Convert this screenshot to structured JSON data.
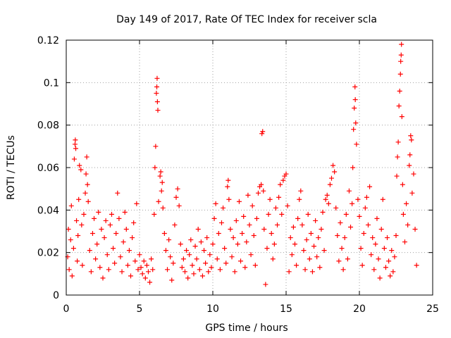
{
  "chart_data": {
    "type": "scatter",
    "title": "Day 149 of 2017, Rate Of TEC Index for receiver scla",
    "xlabel": "GPS time / hours",
    "ylabel": "ROTI / TECUs",
    "xlim": [
      0,
      25
    ],
    "ylim": [
      0,
      0.12
    ],
    "x_ticks": [
      "0",
      "5",
      "10",
      "15",
      "20",
      "25"
    ],
    "y_ticks": [
      "0",
      "0.02",
      "0.04",
      "0.06",
      "0.08",
      "0.1",
      "0.12"
    ],
    "x_tick_values": [
      0,
      5,
      10,
      15,
      20,
      25
    ],
    "y_tick_values": [
      0,
      0.02,
      0.04,
      0.06,
      0.08,
      0.1,
      0.12
    ],
    "grid": true,
    "marker": "+",
    "color": "#ff0000",
    "series": [
      {
        "name": "",
        "points": [
          [
            0.1,
            0.018
          ],
          [
            0.15,
            0.031
          ],
          [
            0.2,
            0.012
          ],
          [
            0.3,
            0.026
          ],
          [
            0.35,
            0.042
          ],
          [
            0.4,
            0.009
          ],
          [
            0.5,
            0.022
          ],
          [
            0.55,
            0.064
          ],
          [
            0.6,
            0.071
          ],
          [
            0.62,
            0.073
          ],
          [
            0.65,
            0.069
          ],
          [
            0.7,
            0.035
          ],
          [
            0.75,
            0.016
          ],
          [
            0.8,
            0.028
          ],
          [
            0.85,
            0.045
          ],
          [
            0.9,
            0.061
          ],
          [
            1.0,
            0.059
          ],
          [
            1.05,
            0.033
          ],
          [
            1.1,
            0.014
          ],
          [
            1.2,
            0.038
          ],
          [
            1.3,
            0.048
          ],
          [
            1.35,
            0.057
          ],
          [
            1.4,
            0.065
          ],
          [
            1.45,
            0.052
          ],
          [
            1.5,
            0.044
          ],
          [
            1.6,
            0.021
          ],
          [
            1.7,
            0.011
          ],
          [
            1.8,
            0.029
          ],
          [
            1.9,
            0.036
          ],
          [
            2.0,
            0.017
          ],
          [
            2.1,
            0.024
          ],
          [
            2.2,
            0.039
          ],
          [
            2.3,
            0.013
          ],
          [
            2.4,
            0.031
          ],
          [
            2.5,
            0.008
          ],
          [
            2.6,
            0.027
          ],
          [
            2.7,
            0.035
          ],
          [
            2.8,
            0.019
          ],
          [
            2.9,
            0.012
          ],
          [
            3.0,
            0.033
          ],
          [
            3.1,
            0.038
          ],
          [
            3.2,
            0.022
          ],
          [
            3.3,
            0.015
          ],
          [
            3.4,
            0.029
          ],
          [
            3.5,
            0.048
          ],
          [
            3.6,
            0.036
          ],
          [
            3.7,
            0.018
          ],
          [
            3.8,
            0.011
          ],
          [
            3.9,
            0.025
          ],
          [
            4.0,
            0.039
          ],
          [
            4.1,
            0.031
          ],
          [
            4.2,
            0.014
          ],
          [
            4.3,
            0.021
          ],
          [
            4.4,
            0.009
          ],
          [
            4.5,
            0.027
          ],
          [
            4.6,
            0.034
          ],
          [
            4.7,
            0.016
          ],
          [
            4.8,
            0.043
          ],
          [
            4.9,
            0.012
          ],
          [
            5.0,
            0.019
          ],
          [
            5.1,
            0.013
          ],
          [
            5.2,
            0.01
          ],
          [
            5.3,
            0.016
          ],
          [
            5.4,
            0.008
          ],
          [
            5.5,
            0.014
          ],
          [
            5.6,
            0.011
          ],
          [
            5.7,
            0.006
          ],
          [
            5.8,
            0.017
          ],
          [
            5.9,
            0.012
          ],
          [
            6.0,
            0.038
          ],
          [
            6.05,
            0.06
          ],
          [
            6.1,
            0.07
          ],
          [
            6.15,
            0.095
          ],
          [
            6.18,
            0.098
          ],
          [
            6.2,
            0.102
          ],
          [
            6.22,
            0.091
          ],
          [
            6.25,
            0.087
          ],
          [
            6.3,
            0.044
          ],
          [
            6.4,
            0.056
          ],
          [
            6.45,
            0.058
          ],
          [
            6.5,
            0.049
          ],
          [
            6.55,
            0.053
          ],
          [
            6.6,
            0.041
          ],
          [
            6.7,
            0.029
          ],
          [
            6.8,
            0.021
          ],
          [
            6.9,
            0.012
          ],
          [
            7.0,
            0.026
          ],
          [
            7.1,
            0.018
          ],
          [
            7.2,
            0.007
          ],
          [
            7.3,
            0.015
          ],
          [
            7.4,
            0.033
          ],
          [
            7.5,
            0.046
          ],
          [
            7.6,
            0.05
          ],
          [
            7.7,
            0.042
          ],
          [
            7.8,
            0.024
          ],
          [
            7.9,
            0.013
          ],
          [
            8.0,
            0.017
          ],
          [
            8.1,
            0.011
          ],
          [
            8.2,
            0.021
          ],
          [
            8.3,
            0.008
          ],
          [
            8.4,
            0.019
          ],
          [
            8.5,
            0.026
          ],
          [
            8.6,
            0.014
          ],
          [
            8.7,
            0.01
          ],
          [
            8.8,
            0.023
          ],
          [
            8.9,
            0.017
          ],
          [
            9.0,
            0.031
          ],
          [
            9.1,
            0.012
          ],
          [
            9.2,
            0.025
          ],
          [
            9.3,
            0.009
          ],
          [
            9.4,
            0.021
          ],
          [
            9.5,
            0.015
          ],
          [
            9.6,
            0.027
          ],
          [
            9.7,
            0.011
          ],
          [
            9.8,
            0.019
          ],
          [
            9.9,
            0.013
          ],
          [
            10.0,
            0.024
          ],
          [
            10.1,
            0.036
          ],
          [
            10.2,
            0.043
          ],
          [
            10.3,
            0.017
          ],
          [
            10.4,
            0.029
          ],
          [
            10.5,
            0.012
          ],
          [
            10.6,
            0.034
          ],
          [
            10.7,
            0.041
          ],
          [
            10.8,
            0.022
          ],
          [
            10.9,
            0.015
          ],
          [
            11.0,
            0.051
          ],
          [
            11.05,
            0.054
          ],
          [
            11.1,
            0.045
          ],
          [
            11.2,
            0.031
          ],
          [
            11.3,
            0.018
          ],
          [
            11.4,
            0.027
          ],
          [
            11.5,
            0.011
          ],
          [
            11.6,
            0.035
          ],
          [
            11.7,
            0.024
          ],
          [
            11.8,
            0.044
          ],
          [
            11.9,
            0.016
          ],
          [
            12.0,
            0.029
          ],
          [
            12.1,
            0.037
          ],
          [
            12.2,
            0.013
          ],
          [
            12.3,
            0.025
          ],
          [
            12.4,
            0.047
          ],
          [
            12.5,
            0.033
          ],
          [
            12.6,
            0.019
          ],
          [
            12.7,
            0.042
          ],
          [
            12.8,
            0.028
          ],
          [
            12.9,
            0.014
          ],
          [
            13.0,
            0.036
          ],
          [
            13.1,
            0.048
          ],
          [
            13.2,
            0.051
          ],
          [
            13.3,
            0.052
          ],
          [
            13.35,
            0.076
          ],
          [
            13.4,
            0.077
          ],
          [
            13.45,
            0.049
          ],
          [
            13.5,
            0.031
          ],
          [
            13.6,
            0.005
          ],
          [
            13.7,
            0.022
          ],
          [
            13.8,
            0.038
          ],
          [
            13.9,
            0.045
          ],
          [
            14.0,
            0.029
          ],
          [
            14.1,
            0.017
          ],
          [
            14.2,
            0.024
          ],
          [
            14.3,
            0.041
          ],
          [
            14.4,
            0.033
          ],
          [
            14.5,
            0.046
          ],
          [
            14.6,
            0.052
          ],
          [
            14.7,
            0.038
          ],
          [
            14.8,
            0.054
          ],
          [
            14.9,
            0.056
          ],
          [
            15.0,
            0.057
          ],
          [
            15.1,
            0.042
          ],
          [
            15.2,
            0.011
          ],
          [
            15.3,
            0.027
          ],
          [
            15.4,
            0.019
          ],
          [
            15.5,
            0.032
          ],
          [
            15.6,
            0.024
          ],
          [
            15.7,
            0.014
          ],
          [
            15.8,
            0.036
          ],
          [
            15.9,
            0.045
          ],
          [
            16.0,
            0.049
          ],
          [
            16.1,
            0.033
          ],
          [
            16.2,
            0.021
          ],
          [
            16.3,
            0.012
          ],
          [
            16.4,
            0.026
          ],
          [
            16.5,
            0.038
          ],
          [
            16.6,
            0.017
          ],
          [
            16.7,
            0.029
          ],
          [
            16.8,
            0.011
          ],
          [
            16.9,
            0.023
          ],
          [
            17.0,
            0.035
          ],
          [
            17.1,
            0.018
          ],
          [
            17.2,
            0.027
          ],
          [
            17.3,
            0.013
          ],
          [
            17.4,
            0.031
          ],
          [
            17.5,
            0.039
          ],
          [
            17.6,
            0.021
          ],
          [
            17.7,
            0.045
          ],
          [
            17.8,
            0.047
          ],
          [
            17.9,
            0.043
          ],
          [
            18.0,
            0.052
          ],
          [
            18.1,
            0.055
          ],
          [
            18.2,
            0.061
          ],
          [
            18.3,
            0.058
          ],
          [
            18.4,
            0.041
          ],
          [
            18.5,
            0.028
          ],
          [
            18.6,
            0.016
          ],
          [
            18.7,
            0.034
          ],
          [
            18.8,
            0.022
          ],
          [
            18.9,
            0.012
          ],
          [
            19.0,
            0.027
          ],
          [
            19.1,
            0.038
          ],
          [
            19.2,
            0.017
          ],
          [
            19.3,
            0.049
          ],
          [
            19.4,
            0.032
          ],
          [
            19.5,
            0.043
          ],
          [
            19.55,
            0.06
          ],
          [
            19.6,
            0.078
          ],
          [
            19.65,
            0.088
          ],
          [
            19.7,
            0.098
          ],
          [
            19.72,
            0.092
          ],
          [
            19.75,
            0.081
          ],
          [
            19.8,
            0.071
          ],
          [
            19.9,
            0.045
          ],
          [
            20.0,
            0.037
          ],
          [
            20.1,
            0.022
          ],
          [
            20.2,
            0.014
          ],
          [
            20.3,
            0.029
          ],
          [
            20.4,
            0.041
          ],
          [
            20.5,
            0.046
          ],
          [
            20.6,
            0.033
          ],
          [
            20.7,
            0.051
          ],
          [
            20.8,
            0.019
          ],
          [
            20.9,
            0.027
          ],
          [
            21.0,
            0.012
          ],
          [
            21.1,
            0.024
          ],
          [
            21.2,
            0.036
          ],
          [
            21.3,
            0.017
          ],
          [
            21.4,
            0.008
          ],
          [
            21.5,
            0.031
          ],
          [
            21.6,
            0.045
          ],
          [
            21.7,
            0.022
          ],
          [
            21.8,
            0.013
          ],
          [
            21.9,
            0.027
          ],
          [
            22.0,
            0.016
          ],
          [
            22.1,
            0.009
          ],
          [
            22.2,
            0.021
          ],
          [
            22.3,
            0.011
          ],
          [
            22.4,
            0.018
          ],
          [
            22.5,
            0.028
          ],
          [
            22.55,
            0.056
          ],
          [
            22.6,
            0.065
          ],
          [
            22.65,
            0.072
          ],
          [
            22.7,
            0.089
          ],
          [
            22.75,
            0.096
          ],
          [
            22.8,
            0.104
          ],
          [
            22.82,
            0.11
          ],
          [
            22.85,
            0.113
          ],
          [
            22.87,
            0.118
          ],
          [
            22.9,
            0.084
          ],
          [
            22.95,
            0.052
          ],
          [
            23.0,
            0.038
          ],
          [
            23.1,
            0.025
          ],
          [
            23.2,
            0.043
          ],
          [
            23.3,
            0.033
          ],
          [
            23.4,
            0.061
          ],
          [
            23.45,
            0.066
          ],
          [
            23.5,
            0.075
          ],
          [
            23.55,
            0.073
          ],
          [
            23.6,
            0.048
          ],
          [
            23.7,
            0.057
          ],
          [
            23.8,
            0.031
          ],
          [
            23.9,
            0.014
          ]
        ]
      }
    ]
  }
}
